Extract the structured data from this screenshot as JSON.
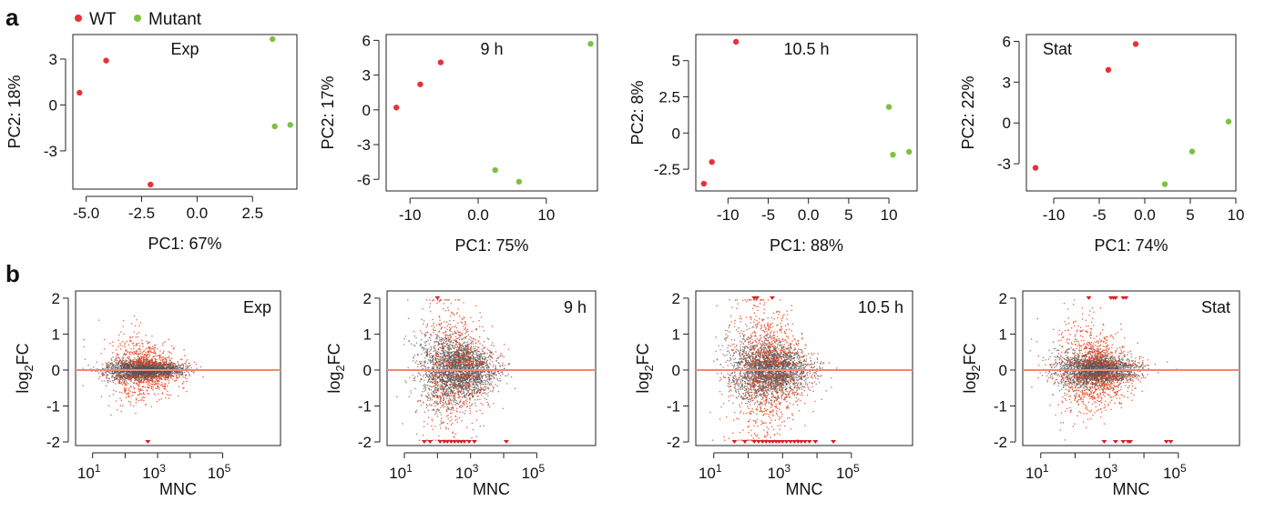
{
  "figure": {
    "panel_a_letter": "a",
    "panel_b_letter": "b",
    "legend": {
      "items": [
        {
          "label": "WT",
          "color": "#e8303a"
        },
        {
          "label": "Mutant",
          "color": "#7dc142"
        }
      ]
    }
  },
  "colors": {
    "wt": "#e8303a",
    "mutant": "#7dc142",
    "ma_gray": "#555555",
    "ma_red": "#e8431c",
    "ma_line": "#f08a6a",
    "ma_clip": "#d3202a"
  },
  "chart_data": [
    {
      "type": "scatter",
      "title": "Exp",
      "xlabel": "PC1: 67%",
      "ylabel": "PC2: 18%",
      "xlim": [
        -5.6,
        4.5
      ],
      "ylim": [
        -5.5,
        4.6
      ],
      "xticks": [
        -5.0,
        -2.5,
        0.0,
        2.5
      ],
      "xtick_labels": [
        "-5.0",
        "-2.5",
        "0.0",
        "2.5"
      ],
      "yticks": [
        -3,
        0,
        3
      ],
      "ytick_labels": [
        "-3",
        "0",
        "3"
      ],
      "series": [
        {
          "name": "WT",
          "x": [
            -5.3,
            -4.1,
            -2.1
          ],
          "y": [
            0.8,
            2.9,
            -5.2
          ]
        },
        {
          "name": "Mutant",
          "x": [
            3.4,
            3.5,
            4.2
          ],
          "y": [
            4.3,
            -1.4,
            -1.3
          ]
        }
      ]
    },
    {
      "type": "scatter",
      "title": "9 h",
      "xlabel": "PC1: 75%",
      "ylabel": "PC2: 17%",
      "xlim": [
        -13.5,
        17.5
      ],
      "ylim": [
        -7.0,
        6.5
      ],
      "xticks": [
        -10,
        0,
        10
      ],
      "xtick_labels": [
        "-10",
        "0.0",
        "10"
      ],
      "yticks": [
        -6,
        -3,
        0,
        3,
        6
      ],
      "ytick_labels": [
        "-6",
        "-3",
        "0",
        "3",
        "6"
      ],
      "series": [
        {
          "name": "WT",
          "x": [
            -12,
            -8.5,
            -5.5
          ],
          "y": [
            0.2,
            2.2,
            4.1
          ]
        },
        {
          "name": "Mutant",
          "x": [
            2.5,
            6,
            16.5
          ],
          "y": [
            -5.2,
            -6.2,
            5.7
          ]
        }
      ]
    },
    {
      "type": "scatter",
      "title": "10.5 h",
      "xlabel": "PC1: 88%",
      "ylabel": "PC2: 8%",
      "xlim": [
        -14,
        13.5
      ],
      "ylim": [
        -4.0,
        6.8
      ],
      "xticks": [
        -10,
        -5,
        0,
        5,
        10
      ],
      "xtick_labels": [
        "-10",
        "-5",
        "0.0",
        "5",
        "10"
      ],
      "yticks": [
        -2.5,
        0,
        2.5,
        5
      ],
      "ytick_labels": [
        "-2.5",
        "0",
        "2.5",
        "5"
      ],
      "series": [
        {
          "name": "WT",
          "x": [
            -13,
            -12,
            -9
          ],
          "y": [
            -3.5,
            -2.0,
            6.3
          ]
        },
        {
          "name": "Mutant",
          "x": [
            10,
            10.5,
            12.5
          ],
          "y": [
            1.8,
            -1.5,
            -1.3
          ]
        }
      ]
    },
    {
      "type": "scatter",
      "title": "Stat",
      "xlabel": "PC1: 74%",
      "ylabel": "PC2: 22%",
      "xlim": [
        -13,
        10
      ],
      "ylim": [
        -5.0,
        6.5
      ],
      "xticks": [
        -10,
        -5,
        0,
        5,
        10
      ],
      "xtick_labels": [
        "-10",
        "-5",
        "0.0",
        "5",
        "10"
      ],
      "yticks": [
        -3,
        0,
        3,
        6
      ],
      "ytick_labels": [
        "-3",
        "0",
        "3",
        "6"
      ],
      "series": [
        {
          "name": "WT",
          "x": [
            -12,
            -4,
            -1
          ],
          "y": [
            -3.3,
            3.9,
            5.8
          ]
        },
        {
          "name": "Mutant",
          "x": [
            2.2,
            5.2,
            9.2
          ],
          "y": [
            -4.5,
            -2.1,
            0.1
          ]
        }
      ]
    },
    {
      "type": "scatter",
      "title": "Exp",
      "xlabel": "MNC",
      "ylabel": "log2FC",
      "xscale": "log10",
      "xlim": [
        3,
        6000000
      ],
      "ylim": [
        -2.1,
        2.2
      ],
      "xticks": [
        10,
        1000,
        100000
      ],
      "xtick_labels": [
        "10",
        "10",
        "10"
      ],
      "xtick_exponents": [
        "1",
        "3",
        "5"
      ],
      "yticks": [
        -2,
        -1,
        0,
        1,
        2
      ],
      "ytick_labels": [
        "-2",
        "-1",
        "0",
        "1",
        "2"
      ],
      "spread_gray": 0.12,
      "spread_red": 0.45,
      "red_fraction": 0.3,
      "n_points": 3200,
      "clipped_high_x": [],
      "clipped_low_x": [
        500
      ]
    },
    {
      "type": "scatter",
      "title": "9 h",
      "xlabel": "MNC",
      "ylabel": "log2FC",
      "xscale": "log10",
      "xlim": [
        3,
        6000000
      ],
      "ylim": [
        -2.1,
        2.2
      ],
      "xticks": [
        10,
        1000,
        100000
      ],
      "xtick_labels": [
        "10",
        "10",
        "10"
      ],
      "xtick_exponents": [
        "1",
        "3",
        "5"
      ],
      "yticks": [
        -2,
        -1,
        0,
        1,
        2
      ],
      "ytick_labels": [
        "-2",
        "-1",
        "0",
        "1",
        "2"
      ],
      "spread_gray": 0.45,
      "spread_red": 0.95,
      "red_fraction": 0.28,
      "n_points": 3200,
      "clipped_high_x": [
        100
      ],
      "clipped_low_x": [
        40,
        60,
        120,
        160,
        200,
        260,
        330,
        420,
        520,
        650,
        900,
        1300,
        12000
      ]
    },
    {
      "type": "scatter",
      "title": "10.5 h",
      "xlabel": "MNC",
      "ylabel": "log2FC",
      "xscale": "log10",
      "xlim": [
        3,
        6000000
      ],
      "ylim": [
        -2.1,
        2.2
      ],
      "xticks": [
        10,
        1000,
        100000
      ],
      "xtick_labels": [
        "10",
        "10",
        "10"
      ],
      "xtick_exponents": [
        "1",
        "3",
        "5"
      ],
      "yticks": [
        -2,
        -1,
        0,
        1,
        2
      ],
      "ytick_labels": [
        "-2",
        "-1",
        "0",
        "1",
        "2"
      ],
      "spread_gray": 0.4,
      "spread_red": 0.95,
      "red_fraction": 0.35,
      "n_points": 3400,
      "clipped_high_x": [
        150,
        180,
        500
      ],
      "clipped_low_x": [
        40,
        80,
        150,
        200,
        260,
        330,
        420,
        520,
        650,
        800,
        1000,
        1300,
        1700,
        2200,
        2800,
        3500,
        4500,
        6000,
        9000,
        30000
      ]
    },
    {
      "type": "scatter",
      "title": "Stat",
      "xlabel": "MNC",
      "ylabel": "log2FC",
      "xscale": "log10",
      "xlim": [
        3,
        6000000
      ],
      "ylim": [
        -2.1,
        2.2
      ],
      "xticks": [
        10,
        1000,
        100000
      ],
      "xtick_labels": [
        "10",
        "10",
        "10"
      ],
      "xtick_exponents": [
        "1",
        "3",
        "5"
      ],
      "yticks": [
        -2,
        -1,
        0,
        1,
        2
      ],
      "ytick_labels": [
        "-2",
        "-1",
        "0",
        "1",
        "2"
      ],
      "spread_gray": 0.22,
      "spread_red": 0.6,
      "red_fraction": 0.35,
      "n_points": 3300,
      "clipped_high_x": [
        250,
        1100,
        1300,
        1500,
        2500,
        3000
      ],
      "clipped_low_x": [
        700,
        1500,
        2500,
        3500,
        4000,
        45000,
        60000
      ]
    }
  ]
}
